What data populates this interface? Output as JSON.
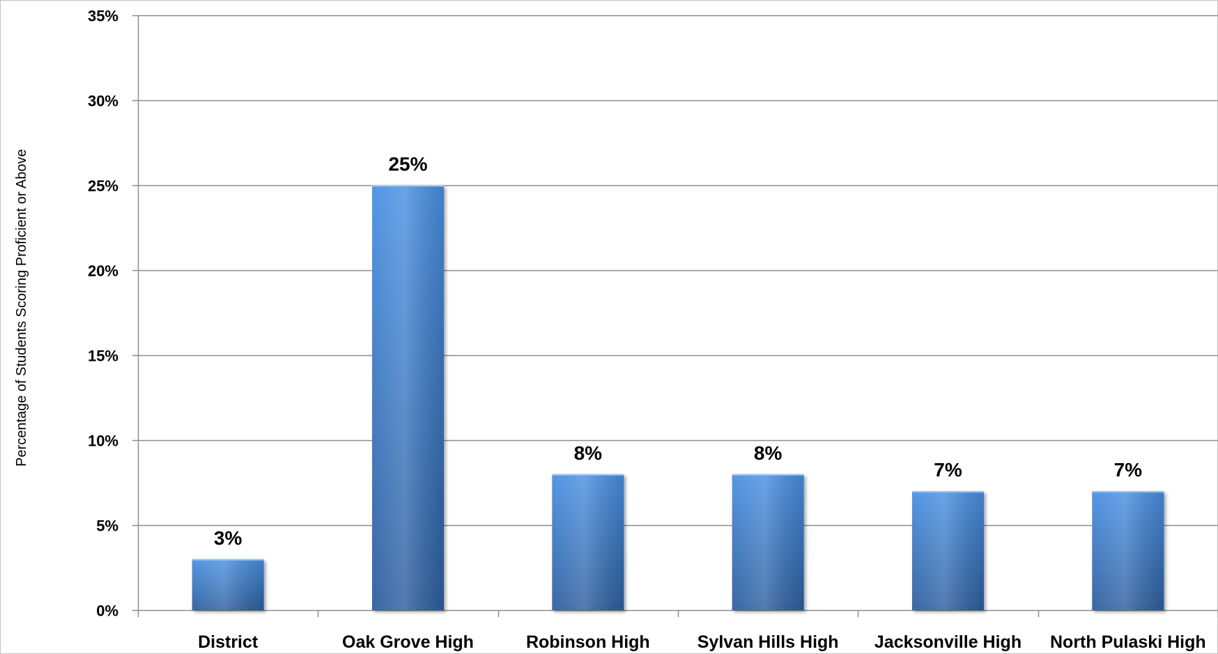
{
  "chart_data": {
    "type": "bar",
    "title": "",
    "xlabel": "",
    "ylabel": "Percentage of Students Scoring Proficient or Above",
    "categories": [
      "District",
      "Oak Grove High",
      "Robinson High",
      "Sylvan Hills High",
      "Jacksonville High",
      "North Pulaski High"
    ],
    "values": [
      3,
      25,
      8,
      8,
      7,
      7
    ],
    "value_suffix": "%",
    "ylim": [
      0,
      35
    ],
    "yticks": [
      0,
      5,
      10,
      15,
      20,
      25,
      30,
      35
    ],
    "ytick_labels": [
      "0%",
      "5%",
      "10%",
      "15%",
      "20%",
      "25%",
      "30%",
      "35%"
    ],
    "grid": true,
    "legend": "none",
    "colors": {
      "bar_light": "#4A90E2",
      "bar_dark": "#2E5F9E",
      "gridline": "#8C8C8C"
    }
  }
}
